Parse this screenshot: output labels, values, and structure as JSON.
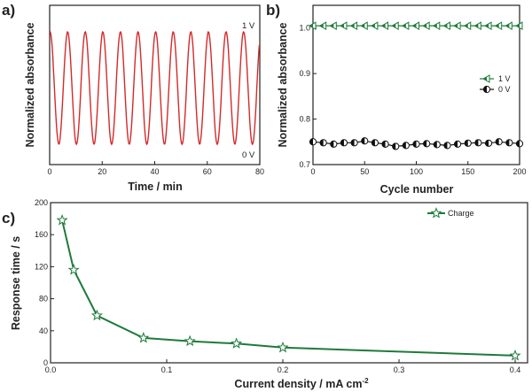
{
  "chart_data": [
    {
      "panel": "a)",
      "type": "line",
      "xlabel": "Time / min",
      "ylabel": "Normalized absorbance",
      "xlim": [
        0,
        80
      ],
      "xticks": [
        "0",
        "20",
        "40",
        "60",
        "80"
      ],
      "annotations": [
        "1 V",
        "0 V"
      ],
      "cycle_period_min": 6.7,
      "series": [
        {
          "name": "absorbance",
          "color": "#d42a2a",
          "cycles": 12
        }
      ]
    },
    {
      "panel": "b)",
      "type": "scatter",
      "xlabel": "Cycle number",
      "ylabel": "Normalized absorbance",
      "xlim": [
        0,
        200
      ],
      "ylim": [
        0.7,
        1.05
      ],
      "xticks": [
        "0",
        "50",
        "100",
        "150",
        "200"
      ],
      "yticks": [
        "0.7",
        "0.8",
        "0.9",
        "1.0"
      ],
      "series": [
        {
          "name": "1 V",
          "color": "#1e7a3a",
          "marker": "half-left-triangle",
          "x": [
            0,
            10,
            20,
            30,
            40,
            50,
            60,
            70,
            80,
            90,
            100,
            110,
            120,
            130,
            140,
            150,
            160,
            170,
            180,
            190,
            200
          ],
          "y": [
            1.005,
            1.005,
            1.005,
            1.005,
            1.005,
            1.005,
            1.005,
            1.005,
            1.005,
            1.005,
            1.005,
            1.005,
            1.005,
            1.005,
            1.005,
            1.005,
            1.005,
            1.005,
            1.005,
            1.005,
            1.005
          ]
        },
        {
          "name": "0 V",
          "color": "#111111",
          "marker": "half-circle",
          "x": [
            0,
            10,
            20,
            30,
            40,
            50,
            60,
            70,
            80,
            90,
            100,
            110,
            120,
            130,
            140,
            150,
            160,
            170,
            180,
            190,
            200
          ],
          "y": [
            0.75,
            0.748,
            0.745,
            0.748,
            0.748,
            0.752,
            0.748,
            0.745,
            0.74,
            0.742,
            0.745,
            0.746,
            0.744,
            0.742,
            0.745,
            0.747,
            0.748,
            0.747,
            0.75,
            0.748,
            0.746
          ]
        }
      ]
    },
    {
      "panel": "c)",
      "type": "line",
      "xlabel": "Current density / mA cm",
      "xlabel_superscript": "-2",
      "ylabel": "Response time / s",
      "xlim": [
        0,
        0.4
      ],
      "ylim": [
        0,
        200
      ],
      "xticks": [
        "0.0",
        "0.1",
        "0.2",
        "0.3",
        "0.4"
      ],
      "yticks": [
        "0",
        "40",
        "80",
        "120",
        "160",
        "200"
      ],
      "series": [
        {
          "name": "Charge",
          "color": "#1e7a3a",
          "marker": "star",
          "x": [
            0.01,
            0.02,
            0.04,
            0.08,
            0.12,
            0.16,
            0.2,
            0.4
          ],
          "y": [
            178,
            116,
            59,
            31,
            27,
            24,
            19,
            9
          ]
        }
      ]
    }
  ]
}
